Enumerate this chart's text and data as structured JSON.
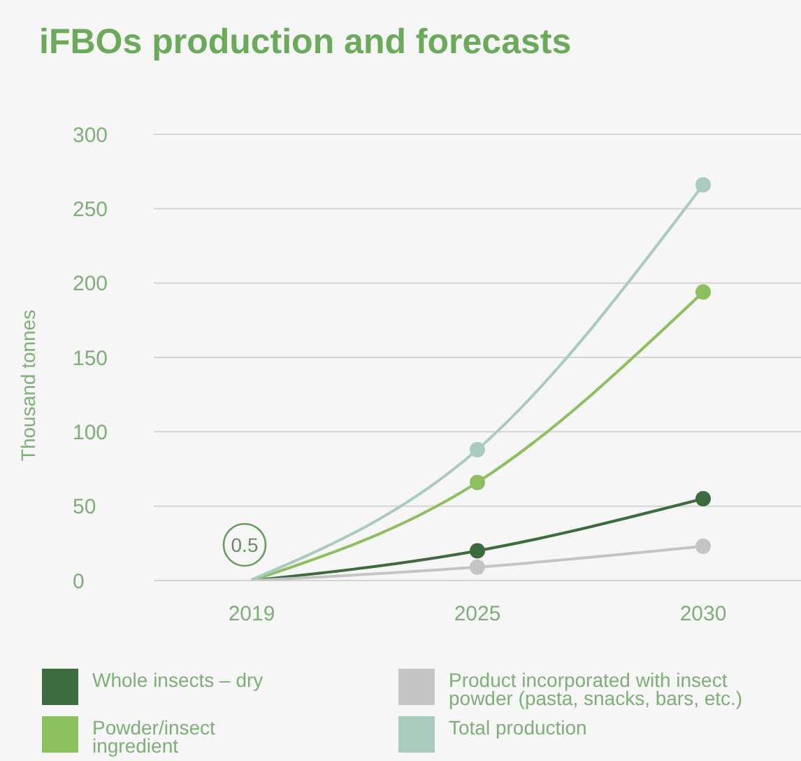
{
  "chart_data": {
    "type": "line",
    "title": "iFBOs production and forecasts",
    "ylabel": "Thousand tonnes",
    "categories": [
      "2019",
      "2025",
      "2030"
    ],
    "series": [
      {
        "name": "Whole insects – dry",
        "color": "#3d6b3f",
        "values": [
          0,
          20,
          55
        ]
      },
      {
        "name": "Powder/insect ingredient",
        "color": "#8cbf5f",
        "values": [
          0,
          66,
          194
        ]
      },
      {
        "name": "Product incorporated with insect powder (pasta, snacks, bars, etc.)",
        "color": "#c4c4c4",
        "values": [
          0,
          9,
          23
        ]
      },
      {
        "name": "Total production",
        "color": "#a8cbbd",
        "values": [
          0.5,
          88,
          266
        ]
      }
    ],
    "ylim": [
      0,
      300
    ],
    "yticks": [
      0,
      50,
      100,
      150,
      200,
      250,
      300
    ],
    "grid": "y",
    "legend": "bottom",
    "marker": "circle",
    "line_style": "solid",
    "annotations": [
      {
        "text": "0.5",
        "x": "2019",
        "y": 0.5
      }
    ]
  }
}
